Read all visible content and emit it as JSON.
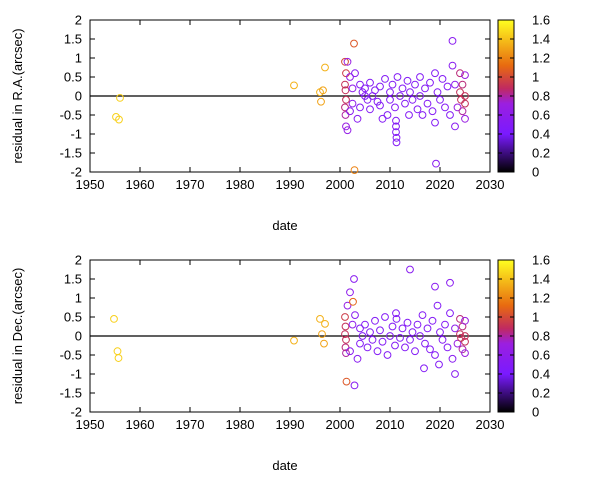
{
  "chart_data": [
    {
      "type": "scatter",
      "xlabel": "date",
      "ylabel": "residual in R.A.(arcsec)",
      "xlim": [
        1950,
        2030
      ],
      "ylim": [
        -2,
        2
      ],
      "xticks": [
        1950,
        1960,
        1970,
        1980,
        1990,
        2000,
        2010,
        2020,
        2030
      ],
      "yticks": [
        2,
        1.5,
        1,
        0.5,
        0,
        -0.5,
        -1,
        -1.5,
        -2
      ],
      "ytick_labels": [
        "2",
        "1.5",
        "1",
        "0.5",
        "0",
        "-0.5",
        "-1",
        "-1.5",
        "-2"
      ],
      "zero_line": true,
      "colorbar": {
        "min": 0,
        "max": 1.6,
        "ticks": [
          1.6,
          1.4,
          1.2,
          1,
          0.8,
          0.6,
          0.4,
          0.2,
          0
        ],
        "tick_labels": [
          "1.6",
          "1.4",
          "1.2",
          "1",
          "0.8",
          "0.6",
          "0.4",
          "0.2",
          "0"
        ]
      },
      "points": [
        {
          "x": 1955.2,
          "y": -0.55,
          "c": 1.45
        },
        {
          "x": 1955.8,
          "y": -0.62,
          "c": 1.45
        },
        {
          "x": 1956.0,
          "y": -0.05,
          "c": 1.45
        },
        {
          "x": 1990.8,
          "y": 0.28,
          "c": 1.35
        },
        {
          "x": 1996.0,
          "y": 0.1,
          "c": 1.35
        },
        {
          "x": 1996.2,
          "y": -0.15,
          "c": 1.3
        },
        {
          "x": 1996.6,
          "y": 0.15,
          "c": 1.3
        },
        {
          "x": 1997.0,
          "y": 0.75,
          "c": 1.35
        },
        {
          "x": 2001.0,
          "y": 0.9,
          "c": 1.0
        },
        {
          "x": 2001.2,
          "y": 0.6,
          "c": 0.95
        },
        {
          "x": 2001.0,
          "y": 0.3,
          "c": 0.9
        },
        {
          "x": 2001.1,
          "y": 0.15,
          "c": 0.9
        },
        {
          "x": 2001.2,
          "y": -0.1,
          "c": 0.9
        },
        {
          "x": 2001.0,
          "y": -0.3,
          "c": 0.85
        },
        {
          "x": 2001.1,
          "y": -0.5,
          "c": 0.8
        },
        {
          "x": 2001.2,
          "y": -0.8,
          "c": 0.7
        },
        {
          "x": 2001.5,
          "y": 0.9,
          "c": 0.7
        },
        {
          "x": 2001.5,
          "y": -0.9,
          "c": 0.65
        },
        {
          "x": 2002.0,
          "y": 0.5,
          "c": 0.6
        },
        {
          "x": 2002.0,
          "y": -0.4,
          "c": 0.55
        },
        {
          "x": 2002.5,
          "y": 0.2,
          "c": 0.6
        },
        {
          "x": 2002.5,
          "y": -0.2,
          "c": 0.6
        },
        {
          "x": 2002.8,
          "y": 1.38,
          "c": 1.05
        },
        {
          "x": 2002.9,
          "y": -1.95,
          "c": 1.2
        },
        {
          "x": 2003.0,
          "y": 0.6,
          "c": 0.55
        },
        {
          "x": 2003.5,
          "y": -0.6,
          "c": 0.55
        },
        {
          "x": 2004.0,
          "y": 0.3,
          "c": 0.5
        },
        {
          "x": 2004.0,
          "y": -0.3,
          "c": 0.5
        },
        {
          "x": 2004.5,
          "y": 0.1,
          "c": 0.5
        },
        {
          "x": 2005.0,
          "y": 0.0,
          "c": 0.5
        },
        {
          "x": 2005.0,
          "y": 0.2,
          "c": 0.5
        },
        {
          "x": 2005.5,
          "y": -0.1,
          "c": 0.5
        },
        {
          "x": 2006.0,
          "y": 0.35,
          "c": 0.5
        },
        {
          "x": 2006.0,
          "y": -0.35,
          "c": 0.5
        },
        {
          "x": 2006.5,
          "y": 0.0,
          "c": 0.5
        },
        {
          "x": 2007.0,
          "y": 0.15,
          "c": 0.5
        },
        {
          "x": 2007.5,
          "y": -0.15,
          "c": 0.5
        },
        {
          "x": 2008.0,
          "y": 0.25,
          "c": 0.5
        },
        {
          "x": 2008.0,
          "y": -0.25,
          "c": 0.5
        },
        {
          "x": 2008.5,
          "y": -0.6,
          "c": 0.5
        },
        {
          "x": 2009.0,
          "y": 0.45,
          "c": 0.5
        },
        {
          "x": 2009.5,
          "y": -0.5,
          "c": 0.5
        },
        {
          "x": 2010.0,
          "y": 0.1,
          "c": 0.5
        },
        {
          "x": 2010.0,
          "y": -0.1,
          "c": 0.5
        },
        {
          "x": 2010.5,
          "y": 0.3,
          "c": 0.5
        },
        {
          "x": 2011.0,
          "y": -0.3,
          "c": 0.5
        },
        {
          "x": 2011.2,
          "y": -0.65,
          "c": 0.5
        },
        {
          "x": 2011.2,
          "y": -0.8,
          "c": 0.5
        },
        {
          "x": 2011.2,
          "y": -0.95,
          "c": 0.5
        },
        {
          "x": 2011.3,
          "y": -1.1,
          "c": 0.5
        },
        {
          "x": 2011.3,
          "y": -1.22,
          "c": 0.5
        },
        {
          "x": 2011.5,
          "y": 0.5,
          "c": 0.5
        },
        {
          "x": 2012.0,
          "y": 0.0,
          "c": 0.5
        },
        {
          "x": 2012.5,
          "y": 0.2,
          "c": 0.5
        },
        {
          "x": 2013.0,
          "y": -0.2,
          "c": 0.5
        },
        {
          "x": 2013.5,
          "y": 0.4,
          "c": 0.5
        },
        {
          "x": 2013.8,
          "y": -0.5,
          "c": 0.5
        },
        {
          "x": 2014.0,
          "y": 0.1,
          "c": 0.5
        },
        {
          "x": 2014.5,
          "y": -0.1,
          "c": 0.5
        },
        {
          "x": 2015.0,
          "y": 0.3,
          "c": 0.5
        },
        {
          "x": 2015.5,
          "y": -0.35,
          "c": 0.5
        },
        {
          "x": 2016.0,
          "y": 0.5,
          "c": 0.5
        },
        {
          "x": 2016.0,
          "y": 0.0,
          "c": 0.5
        },
        {
          "x": 2016.5,
          "y": -0.5,
          "c": 0.5
        },
        {
          "x": 2017.0,
          "y": 0.2,
          "c": 0.5
        },
        {
          "x": 2017.5,
          "y": -0.2,
          "c": 0.5
        },
        {
          "x": 2018.0,
          "y": 0.35,
          "c": 0.5
        },
        {
          "x": 2018.5,
          "y": -0.4,
          "c": 0.5
        },
        {
          "x": 2019.0,
          "y": 0.6,
          "c": 0.5
        },
        {
          "x": 2019.0,
          "y": -0.7,
          "c": 0.5
        },
        {
          "x": 2019.2,
          "y": -1.78,
          "c": 0.55
        },
        {
          "x": 2019.5,
          "y": 0.1,
          "c": 0.5
        },
        {
          "x": 2020.0,
          "y": -0.1,
          "c": 0.5
        },
        {
          "x": 2020.5,
          "y": 0.45,
          "c": 0.5
        },
        {
          "x": 2021.0,
          "y": -0.3,
          "c": 0.5
        },
        {
          "x": 2021.5,
          "y": 0.25,
          "c": 0.5
        },
        {
          "x": 2022.0,
          "y": -0.5,
          "c": 0.5
        },
        {
          "x": 2022.5,
          "y": 1.45,
          "c": 0.55
        },
        {
          "x": 2022.5,
          "y": 0.8,
          "c": 0.55
        },
        {
          "x": 2023.0,
          "y": -0.8,
          "c": 0.55
        },
        {
          "x": 2023.0,
          "y": 0.3,
          "c": 0.6
        },
        {
          "x": 2023.5,
          "y": -0.3,
          "c": 0.7
        },
        {
          "x": 2024.0,
          "y": 0.6,
          "c": 0.85
        },
        {
          "x": 2024.0,
          "y": 0.1,
          "c": 0.9
        },
        {
          "x": 2024.2,
          "y": -0.1,
          "c": 0.9
        },
        {
          "x": 2024.5,
          "y": -0.4,
          "c": 0.8
        },
        {
          "x": 2024.5,
          "y": 0.3,
          "c": 0.85
        },
        {
          "x": 2025.0,
          "y": 0.0,
          "c": 0.9
        },
        {
          "x": 2025.0,
          "y": -0.2,
          "c": 0.9
        },
        {
          "x": 2025.0,
          "y": 0.55,
          "c": 0.7
        },
        {
          "x": 2025.0,
          "y": -0.6,
          "c": 0.7
        }
      ]
    },
    {
      "type": "scatter",
      "xlabel": "date",
      "ylabel": "residual in Dec.(arcsec)",
      "xlim": [
        1950,
        2030
      ],
      "ylim": [
        -2,
        2
      ],
      "xticks": [
        1950,
        1960,
        1970,
        1980,
        1990,
        2000,
        2010,
        2020,
        2030
      ],
      "yticks": [
        2,
        1.5,
        1,
        0.5,
        0,
        -0.5,
        -1,
        -1.5,
        -2
      ],
      "ytick_labels": [
        "2",
        "1.5",
        "1",
        "0.5",
        "0",
        "-0.5",
        "-1",
        "-1.5",
        "-2"
      ],
      "zero_line": true,
      "colorbar": {
        "min": 0,
        "max": 1.6,
        "ticks": [
          1.6,
          1.4,
          1.2,
          1,
          0.8,
          0.6,
          0.4,
          0.2,
          0
        ],
        "tick_labels": [
          "1.6",
          "1.4",
          "1.2",
          "1",
          "0.8",
          "0.6",
          "0.4",
          "0.2",
          "0"
        ]
      },
      "points": [
        {
          "x": 1954.8,
          "y": 0.45,
          "c": 1.45
        },
        {
          "x": 1955.5,
          "y": -0.4,
          "c": 1.45
        },
        {
          "x": 1955.7,
          "y": -0.58,
          "c": 1.45
        },
        {
          "x": 1990.8,
          "y": -0.12,
          "c": 1.35
        },
        {
          "x": 1996.0,
          "y": 0.45,
          "c": 1.35
        },
        {
          "x": 1996.4,
          "y": 0.05,
          "c": 1.3
        },
        {
          "x": 1996.8,
          "y": -0.2,
          "c": 1.3
        },
        {
          "x": 1997.0,
          "y": 0.32,
          "c": 1.35
        },
        {
          "x": 2001.0,
          "y": 0.5,
          "c": 0.95
        },
        {
          "x": 2001.1,
          "y": 0.25,
          "c": 0.9
        },
        {
          "x": 2001.0,
          "y": 0.05,
          "c": 0.9
        },
        {
          "x": 2001.2,
          "y": -0.1,
          "c": 0.9
        },
        {
          "x": 2001.1,
          "y": -0.3,
          "c": 0.85
        },
        {
          "x": 2001.2,
          "y": -0.45,
          "c": 0.8
        },
        {
          "x": 2001.3,
          "y": -1.2,
          "c": 1.05
        },
        {
          "x": 2001.5,
          "y": 0.8,
          "c": 0.65
        },
        {
          "x": 2002.0,
          "y": 1.15,
          "c": 0.6
        },
        {
          "x": 2002.0,
          "y": -0.4,
          "c": 0.55
        },
        {
          "x": 2002.5,
          "y": 0.3,
          "c": 0.6
        },
        {
          "x": 2002.6,
          "y": 0.9,
          "c": 1.1
        },
        {
          "x": 2002.8,
          "y": 1.5,
          "c": 0.55
        },
        {
          "x": 2002.9,
          "y": -1.3,
          "c": 0.55
        },
        {
          "x": 2003.0,
          "y": 0.55,
          "c": 0.55
        },
        {
          "x": 2003.5,
          "y": -0.6,
          "c": 0.55
        },
        {
          "x": 2004.0,
          "y": 0.2,
          "c": 0.5
        },
        {
          "x": 2004.0,
          "y": -0.2,
          "c": 0.5
        },
        {
          "x": 2004.5,
          "y": 0.0,
          "c": 0.5
        },
        {
          "x": 2005.0,
          "y": 0.3,
          "c": 0.5
        },
        {
          "x": 2005.5,
          "y": -0.3,
          "c": 0.5
        },
        {
          "x": 2006.0,
          "y": 0.1,
          "c": 0.5
        },
        {
          "x": 2006.5,
          "y": -0.1,
          "c": 0.5
        },
        {
          "x": 2007.0,
          "y": 0.4,
          "c": 0.5
        },
        {
          "x": 2007.5,
          "y": -0.4,
          "c": 0.5
        },
        {
          "x": 2008.0,
          "y": 0.15,
          "c": 0.5
        },
        {
          "x": 2008.5,
          "y": -0.15,
          "c": 0.5
        },
        {
          "x": 2009.0,
          "y": 0.5,
          "c": 0.5
        },
        {
          "x": 2009.5,
          "y": -0.5,
          "c": 0.5
        },
        {
          "x": 2010.0,
          "y": 0.0,
          "c": 0.5
        },
        {
          "x": 2010.5,
          "y": 0.25,
          "c": 0.5
        },
        {
          "x": 2011.0,
          "y": -0.25,
          "c": 0.5
        },
        {
          "x": 2011.2,
          "y": 0.6,
          "c": 0.5
        },
        {
          "x": 2011.3,
          "y": 0.45,
          "c": 0.5
        },
        {
          "x": 2012.0,
          "y": -0.05,
          "c": 0.5
        },
        {
          "x": 2012.5,
          "y": 0.2,
          "c": 0.5
        },
        {
          "x": 2013.0,
          "y": -0.3,
          "c": 0.5
        },
        {
          "x": 2013.5,
          "y": 0.35,
          "c": 0.5
        },
        {
          "x": 2014.0,
          "y": 1.75,
          "c": 0.55
        },
        {
          "x": 2014.0,
          "y": -0.1,
          "c": 0.5
        },
        {
          "x": 2014.5,
          "y": 0.1,
          "c": 0.5
        },
        {
          "x": 2015.0,
          "y": -0.4,
          "c": 0.5
        },
        {
          "x": 2015.5,
          "y": 0.3,
          "c": 0.5
        },
        {
          "x": 2016.0,
          "y": 0.0,
          "c": 0.5
        },
        {
          "x": 2016.5,
          "y": 0.55,
          "c": 0.5
        },
        {
          "x": 2016.8,
          "y": -0.85,
          "c": 0.5
        },
        {
          "x": 2017.0,
          "y": -0.2,
          "c": 0.5
        },
        {
          "x": 2017.5,
          "y": 0.2,
          "c": 0.5
        },
        {
          "x": 2018.0,
          "y": -0.35,
          "c": 0.5
        },
        {
          "x": 2018.5,
          "y": 0.4,
          "c": 0.5
        },
        {
          "x": 2019.0,
          "y": 1.3,
          "c": 0.55
        },
        {
          "x": 2019.0,
          "y": -0.5,
          "c": 0.5
        },
        {
          "x": 2019.5,
          "y": 0.8,
          "c": 0.5
        },
        {
          "x": 2019.8,
          "y": -0.75,
          "c": 0.5
        },
        {
          "x": 2020.0,
          "y": 0.1,
          "c": 0.5
        },
        {
          "x": 2020.5,
          "y": -0.1,
          "c": 0.5
        },
        {
          "x": 2021.0,
          "y": 0.3,
          "c": 0.5
        },
        {
          "x": 2021.5,
          "y": -0.3,
          "c": 0.5
        },
        {
          "x": 2022.0,
          "y": 1.4,
          "c": 0.55
        },
        {
          "x": 2022.0,
          "y": 0.6,
          "c": 0.5
        },
        {
          "x": 2022.5,
          "y": -0.6,
          "c": 0.55
        },
        {
          "x": 2023.0,
          "y": -1.0,
          "c": 0.55
        },
        {
          "x": 2023.0,
          "y": 0.2,
          "c": 0.6
        },
        {
          "x": 2023.5,
          "y": -0.2,
          "c": 0.7
        },
        {
          "x": 2024.0,
          "y": 0.45,
          "c": 0.85
        },
        {
          "x": 2024.0,
          "y": 0.05,
          "c": 0.9
        },
        {
          "x": 2024.2,
          "y": -0.05,
          "c": 0.9
        },
        {
          "x": 2024.5,
          "y": -0.35,
          "c": 0.8
        },
        {
          "x": 2024.5,
          "y": 0.25,
          "c": 0.85
        },
        {
          "x": 2025.0,
          "y": 0.0,
          "c": 0.9
        },
        {
          "x": 2025.0,
          "y": -0.15,
          "c": 0.9
        },
        {
          "x": 2025.0,
          "y": 0.4,
          "c": 0.7
        },
        {
          "x": 2025.0,
          "y": -0.45,
          "c": 0.7
        }
      ]
    }
  ]
}
